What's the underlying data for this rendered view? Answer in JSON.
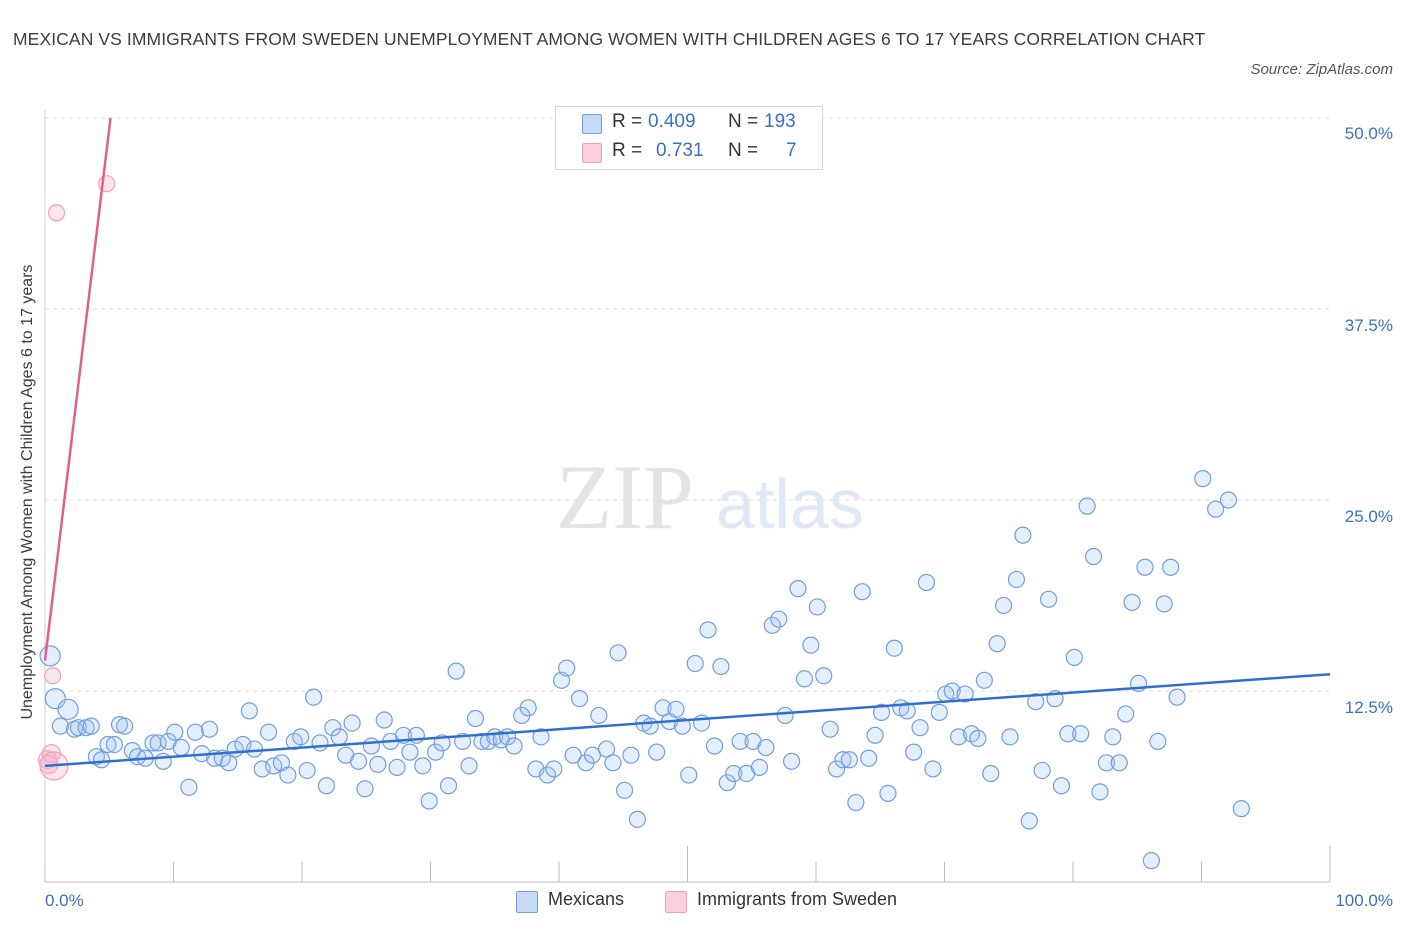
{
  "title": "MEXICAN VS IMMIGRANTS FROM SWEDEN UNEMPLOYMENT AMONG WOMEN WITH CHILDREN AGES 6 TO 17 YEARS CORRELATION CHART",
  "source": "Source: ZipAtlas.com",
  "watermark": {
    "zip": "ZIP",
    "atlas": "atlas"
  },
  "legend": {
    "r_label": "R =",
    "n_label": "N =",
    "rows": [
      {
        "r": "0.409",
        "n": "193"
      },
      {
        "r": "0.731",
        "n": "7"
      }
    ]
  },
  "x_ticks": {
    "left": "0.0%",
    "right": "100.0%"
  },
  "y_ticks": [
    "50.0%",
    "37.5%",
    "25.0%",
    "12.5%"
  ],
  "colors": {
    "mexicans": "#6f9fe0",
    "sweden": "#f2a0b8",
    "mexicans_line": "#2f6fd0",
    "sweden_line": "#e0608a"
  },
  "chart_data": {
    "type": "scatter",
    "title": "MEXICAN VS IMMIGRANTS FROM SWEDEN UNEMPLOYMENT AMONG WOMEN WITH CHILDREN AGES 6 TO 17 YEARS CORRELATION CHART",
    "xlabel": "",
    "ylabel": "Unemployment Among Women with Children Ages 6 to 17 years",
    "xlim": [
      0,
      100
    ],
    "ylim": [
      0,
      50
    ],
    "y_ticks": [
      12.5,
      25,
      37.5,
      50
    ],
    "grid": true,
    "legend_position": "bottom",
    "series": [
      {
        "name": "Mexicans",
        "r": 0.409,
        "n": 193,
        "trend": [
          [
            0,
            7.6
          ],
          [
            100,
            13.6
          ]
        ],
        "points": [
          [
            0.4,
            14.8
          ],
          [
            0.8,
            12.0
          ],
          [
            1.2,
            10.2
          ],
          [
            1.8,
            11.3
          ],
          [
            2.3,
            10.0
          ],
          [
            2.6,
            10.1
          ],
          [
            3.2,
            10.1
          ],
          [
            3.6,
            10.2
          ],
          [
            4.0,
            8.2
          ],
          [
            4.4,
            8.0
          ],
          [
            4.9,
            9.0
          ],
          [
            5.4,
            9.0
          ],
          [
            5.8,
            10.3
          ],
          [
            6.2,
            10.2
          ],
          [
            6.8,
            8.6
          ],
          [
            7.2,
            8.2
          ],
          [
            7.8,
            8.1
          ],
          [
            8.4,
            9.1
          ],
          [
            8.8,
            9.1
          ],
          [
            9.2,
            7.9
          ],
          [
            9.6,
            9.2
          ],
          [
            10.1,
            9.8
          ],
          [
            10.6,
            8.8
          ],
          [
            11.2,
            6.2
          ],
          [
            11.7,
            9.8
          ],
          [
            12.2,
            8.4
          ],
          [
            12.8,
            10.0
          ],
          [
            13.2,
            8.1
          ],
          [
            13.8,
            8.1
          ],
          [
            14.3,
            7.8
          ],
          [
            14.8,
            8.7
          ],
          [
            15.4,
            9.0
          ],
          [
            15.9,
            11.2
          ],
          [
            16.3,
            8.7
          ],
          [
            16.9,
            7.4
          ],
          [
            17.4,
            9.8
          ],
          [
            17.8,
            7.6
          ],
          [
            18.4,
            7.8
          ],
          [
            18.9,
            7.0
          ],
          [
            19.4,
            9.2
          ],
          [
            19.9,
            9.5
          ],
          [
            20.4,
            7.3
          ],
          [
            20.9,
            12.1
          ],
          [
            21.4,
            9.1
          ],
          [
            21.9,
            6.3
          ],
          [
            22.4,
            10.1
          ],
          [
            22.9,
            9.5
          ],
          [
            23.4,
            8.3
          ],
          [
            23.9,
            10.4
          ],
          [
            24.4,
            7.9
          ],
          [
            24.9,
            6.1
          ],
          [
            25.4,
            8.9
          ],
          [
            25.9,
            7.7
          ],
          [
            26.4,
            10.6
          ],
          [
            26.9,
            9.2
          ],
          [
            27.4,
            7.5
          ],
          [
            27.9,
            9.6
          ],
          [
            28.4,
            8.5
          ],
          [
            28.9,
            9.6
          ],
          [
            29.4,
            7.6
          ],
          [
            29.9,
            5.3
          ],
          [
            30.4,
            8.5
          ],
          [
            30.9,
            9.1
          ],
          [
            31.4,
            6.3
          ],
          [
            32.0,
            13.8
          ],
          [
            32.5,
            9.2
          ],
          [
            33.0,
            7.6
          ],
          [
            33.5,
            10.7
          ],
          [
            34.0,
            9.2
          ],
          [
            34.5,
            9.2
          ],
          [
            35.0,
            9.5
          ],
          [
            35.5,
            9.3
          ],
          [
            36.0,
            9.5
          ],
          [
            36.5,
            8.9
          ],
          [
            37.1,
            10.9
          ],
          [
            37.6,
            11.4
          ],
          [
            38.2,
            7.4
          ],
          [
            38.6,
            9.5
          ],
          [
            39.1,
            7.0
          ],
          [
            39.6,
            7.4
          ],
          [
            40.2,
            13.2
          ],
          [
            40.6,
            14.0
          ],
          [
            41.1,
            8.3
          ],
          [
            41.6,
            12.0
          ],
          [
            42.1,
            7.8
          ],
          [
            42.6,
            8.3
          ],
          [
            43.1,
            10.9
          ],
          [
            43.7,
            8.7
          ],
          [
            44.2,
            7.8
          ],
          [
            44.6,
            15.0
          ],
          [
            45.1,
            6.0
          ],
          [
            45.6,
            8.3
          ],
          [
            46.1,
            4.1
          ],
          [
            46.6,
            10.4
          ],
          [
            47.1,
            10.2
          ],
          [
            47.6,
            8.5
          ],
          [
            48.1,
            11.4
          ],
          [
            48.6,
            10.5
          ],
          [
            49.1,
            11.3
          ],
          [
            49.6,
            10.2
          ],
          [
            50.1,
            7.0
          ],
          [
            50.6,
            14.3
          ],
          [
            51.1,
            10.4
          ],
          [
            51.6,
            16.5
          ],
          [
            52.1,
            8.9
          ],
          [
            52.6,
            14.1
          ],
          [
            53.1,
            6.5
          ],
          [
            53.6,
            7.1
          ],
          [
            54.1,
            9.2
          ],
          [
            54.6,
            7.1
          ],
          [
            55.1,
            9.2
          ],
          [
            55.6,
            7.5
          ],
          [
            56.1,
            8.8
          ],
          [
            56.6,
            16.8
          ],
          [
            57.1,
            17.2
          ],
          [
            57.6,
            10.9
          ],
          [
            58.1,
            7.9
          ],
          [
            58.6,
            19.2
          ],
          [
            59.1,
            13.3
          ],
          [
            59.6,
            15.5
          ],
          [
            60.1,
            18.0
          ],
          [
            60.6,
            13.5
          ],
          [
            61.1,
            10.0
          ],
          [
            61.6,
            7.4
          ],
          [
            62.1,
            8.0
          ],
          [
            62.6,
            8.0
          ],
          [
            63.1,
            5.2
          ],
          [
            63.6,
            19.0
          ],
          [
            64.1,
            8.1
          ],
          [
            64.6,
            9.6
          ],
          [
            65.1,
            11.1
          ],
          [
            65.6,
            5.8
          ],
          [
            66.1,
            15.3
          ],
          [
            66.6,
            11.4
          ],
          [
            67.1,
            11.2
          ],
          [
            67.6,
            8.5
          ],
          [
            68.1,
            10.1
          ],
          [
            68.6,
            19.6
          ],
          [
            69.1,
            7.4
          ],
          [
            69.6,
            11.1
          ],
          [
            70.1,
            12.3
          ],
          [
            70.6,
            12.5
          ],
          [
            71.1,
            9.5
          ],
          [
            71.6,
            12.3
          ],
          [
            72.1,
            9.7
          ],
          [
            72.6,
            9.4
          ],
          [
            73.1,
            13.2
          ],
          [
            73.6,
            7.1
          ],
          [
            74.1,
            15.6
          ],
          [
            74.6,
            18.1
          ],
          [
            75.1,
            9.5
          ],
          [
            75.6,
            19.8
          ],
          [
            76.1,
            22.7
          ],
          [
            76.6,
            4.0
          ],
          [
            77.1,
            11.8
          ],
          [
            77.6,
            7.3
          ],
          [
            78.1,
            18.5
          ],
          [
            78.6,
            12.0
          ],
          [
            79.1,
            6.3
          ],
          [
            79.6,
            9.7
          ],
          [
            80.1,
            14.7
          ],
          [
            80.6,
            9.7
          ],
          [
            81.1,
            24.6
          ],
          [
            81.6,
            21.3
          ],
          [
            82.1,
            5.9
          ],
          [
            82.6,
            7.8
          ],
          [
            83.1,
            9.5
          ],
          [
            83.6,
            7.8
          ],
          [
            84.1,
            11.0
          ],
          [
            84.6,
            18.3
          ],
          [
            85.1,
            13.0
          ],
          [
            85.6,
            20.6
          ],
          [
            86.1,
            1.4
          ],
          [
            86.6,
            9.2
          ],
          [
            87.1,
            18.2
          ],
          [
            87.6,
            20.6
          ],
          [
            88.1,
            12.1
          ],
          [
            90.1,
            26.4
          ],
          [
            91.1,
            24.4
          ],
          [
            92.1,
            25.0
          ],
          [
            93.1,
            4.8
          ]
        ],
        "marker_sizes_note": "some points near x=0 are drawn larger"
      },
      {
        "name": "Immigrants from Sweden",
        "r": 0.731,
        "n": 7,
        "trend": [
          [
            0,
            14.5
          ],
          [
            5.1,
            50
          ]
        ],
        "points": [
          [
            0.2,
            8.0
          ],
          [
            0.3,
            7.7
          ],
          [
            0.5,
            8.4
          ],
          [
            0.6,
            13.5
          ],
          [
            0.7,
            7.6
          ],
          [
            0.9,
            43.8
          ],
          [
            4.8,
            45.7
          ]
        ]
      }
    ]
  }
}
